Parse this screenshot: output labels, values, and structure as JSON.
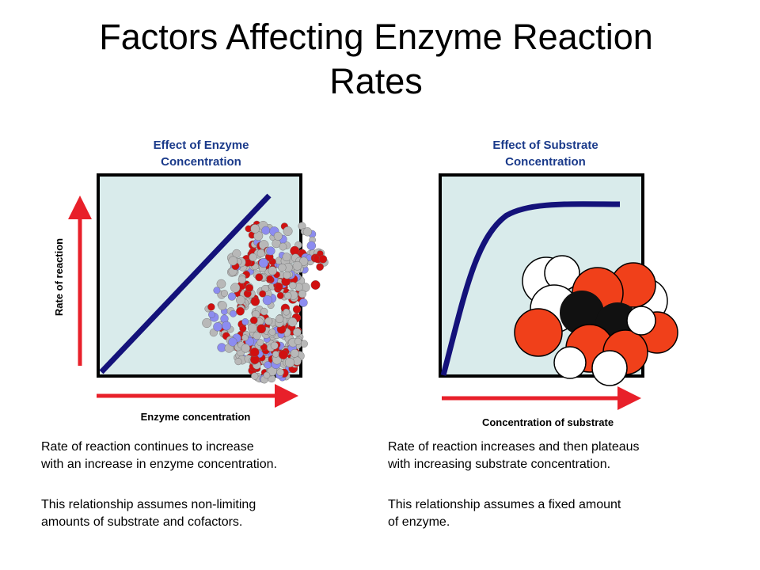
{
  "title": [
    "Factors Affecting Enzyme Reaction",
    "Rates"
  ],
  "panels": [
    {
      "heading": [
        "Effect of Enzyme",
        "Concentration"
      ],
      "y_label": "Rate of reaction",
      "x_label": "Enzyme concentration",
      "caption": [
        "Rate of reaction continues to increase",
        "with an increase in enzyme concentration.",
        "This relationship assumes non-limiting",
        "amounts of substrate and cofactors."
      ]
    },
    {
      "heading": [
        "Effect of Substrate",
        "Concentration"
      ],
      "x_label": "Concentration  of substrate",
      "caption": [
        "Rate of reaction increases and then plateaus",
        "with increasing substrate concentration.",
        "This relationship assumes a fixed amount",
        "of enzyme."
      ]
    }
  ]
}
